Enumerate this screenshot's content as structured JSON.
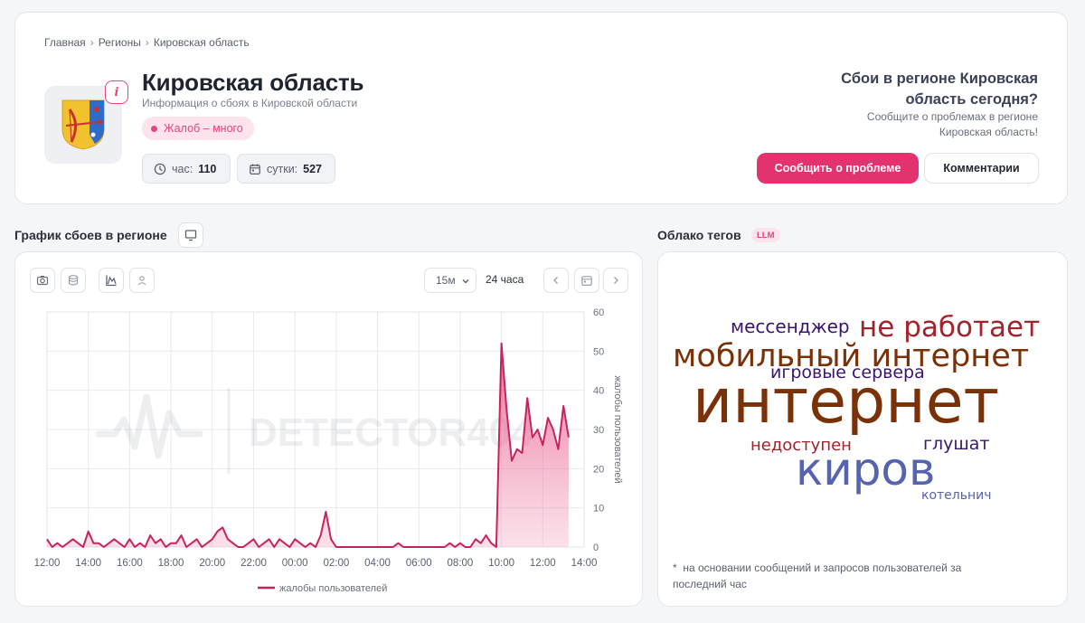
{
  "breadcrumb": [
    "Главная",
    "Регионы",
    "Кировская область"
  ],
  "region": {
    "title": "Кировская область",
    "subtitle": "Информация о сбоях в Кировской области",
    "status": "Жалоб – много",
    "stats": {
      "hour_label": "час:",
      "hour_value": "110",
      "day_label": "сутки:",
      "day_value": "527"
    }
  },
  "info_badge": "i",
  "cta": {
    "question": "Сбои в регионе Кировская область сегодня?",
    "text": "Сообщите о проблемах в регионе Кировская область!",
    "report_button": "Сообщить о проблеме",
    "comments_button": "Комментарии"
  },
  "chart_section": {
    "title": "График сбоев в регионе",
    "interval": "15м",
    "range": "24 часа",
    "watermark": "DETECTOR404"
  },
  "cloud_section": {
    "title": "Облако тегов",
    "badge": "LLM",
    "words": [
      {
        "text": "мессенджер",
        "color": "#3b1470"
      },
      {
        "text": "не работает",
        "color": "#a3232c"
      },
      {
        "text": "мобильный интернет",
        "color": "#7a3107"
      },
      {
        "text": "игровые сервера",
        "color": "#3b1470"
      },
      {
        "text": "интернет",
        "color": "#7a3107"
      },
      {
        "text": "недоступен",
        "color": "#a3232c"
      },
      {
        "text": "глушат",
        "color": "#3b1470"
      },
      {
        "text": "киров",
        "color": "#5563b0"
      },
      {
        "text": "котельнич",
        "color": "#5563b0"
      }
    ],
    "note": "на основании сообщений и запросов пользователей за последний час"
  },
  "colors": {
    "accent": "#e3336f",
    "series": "#c8235f"
  },
  "chart_data": {
    "type": "area",
    "title": "",
    "xlabel": "",
    "ylabel": "жалобы пользователей",
    "ylim": [
      0,
      60
    ],
    "yticks": [
      0,
      10,
      20,
      30,
      40,
      50,
      60
    ],
    "xticks": [
      "12:00",
      "14:00",
      "16:00",
      "18:00",
      "20:00",
      "22:00",
      "00:00",
      "02:00",
      "04:00",
      "06:00",
      "08:00",
      "10:00",
      "12:00",
      "14:00"
    ],
    "legend": "bottom",
    "series": [
      {
        "name": "жалобы пользователей",
        "x": [
          "12:00",
          "12:15",
          "12:30",
          "12:45",
          "13:00",
          "13:15",
          "13:30",
          "13:45",
          "14:00",
          "14:15",
          "14:30",
          "14:45",
          "15:00",
          "15:15",
          "15:30",
          "15:45",
          "16:00",
          "16:15",
          "16:30",
          "16:45",
          "17:00",
          "17:15",
          "17:30",
          "17:45",
          "18:00",
          "18:15",
          "18:30",
          "18:45",
          "19:00",
          "19:15",
          "19:30",
          "19:45",
          "20:00",
          "20:15",
          "20:30",
          "20:45",
          "21:00",
          "21:15",
          "21:30",
          "21:45",
          "22:00",
          "22:15",
          "22:30",
          "22:45",
          "23:00",
          "23:15",
          "23:30",
          "23:45",
          "00:00",
          "00:15",
          "00:30",
          "00:45",
          "01:00",
          "01:15",
          "01:30",
          "01:45",
          "02:00",
          "02:15",
          "02:30",
          "02:45",
          "03:00",
          "03:15",
          "03:30",
          "03:45",
          "04:00",
          "04:15",
          "04:30",
          "04:45",
          "05:00",
          "05:15",
          "05:30",
          "05:45",
          "06:00",
          "06:15",
          "06:30",
          "06:45",
          "07:00",
          "07:15",
          "07:30",
          "07:45",
          "08:00",
          "08:15",
          "08:30",
          "08:45",
          "09:00",
          "09:15",
          "09:30",
          "09:45",
          "10:00",
          "10:15",
          "10:30",
          "10:45",
          "11:00",
          "11:15",
          "11:30",
          "11:45",
          "12:00",
          "12:15",
          "12:30",
          "12:45",
          "13:00",
          "13:15"
        ],
        "y": [
          2,
          0,
          1,
          0,
          1,
          2,
          1,
          0,
          4,
          1,
          1,
          0,
          1,
          2,
          1,
          0,
          2,
          0,
          1,
          0,
          3,
          1,
          2,
          0,
          1,
          1,
          3,
          0,
          1,
          2,
          0,
          1,
          2,
          4,
          5,
          2,
          1,
          0,
          0,
          1,
          2,
          0,
          1,
          2,
          0,
          2,
          1,
          0,
          2,
          1,
          0,
          1,
          0,
          3,
          9,
          2,
          0,
          0,
          0,
          0,
          0,
          0,
          0,
          0,
          0,
          0,
          0,
          0,
          1,
          0,
          0,
          0,
          0,
          0,
          0,
          0,
          0,
          0,
          1,
          0,
          1,
          0,
          0,
          2,
          1,
          3,
          1,
          0,
          52,
          35,
          22,
          25,
          24,
          38,
          28,
          30,
          26,
          33,
          30,
          25,
          36,
          28
        ]
      }
    ]
  }
}
